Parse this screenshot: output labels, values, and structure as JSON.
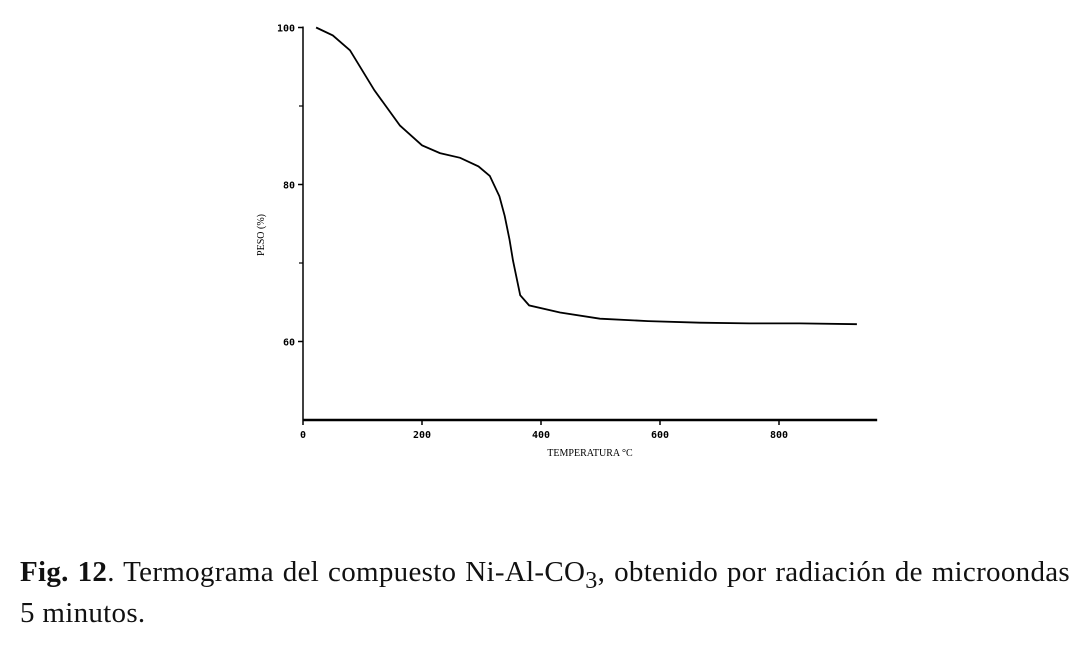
{
  "chart_data": {
    "type": "line",
    "xlabel": "TEMPERATURA °C",
    "ylabel": "PESO (%)",
    "xlim": [
      0,
      965
    ],
    "ylim": [
      50,
      100
    ],
    "xticks": [
      "0",
      "200",
      "400",
      "600",
      "800"
    ],
    "yticks": [
      "100",
      "80",
      "60"
    ],
    "grid": false,
    "series": [
      {
        "x": [
          22,
          50,
          79,
          120,
          163,
          200,
          230,
          264,
          295,
          314,
          330,
          339,
          347,
          353,
          365,
          380,
          432,
          499,
          580,
          667,
          750,
          835,
          931
        ],
        "y": [
          100,
          99,
          97.1,
          92,
          87.5,
          85,
          84,
          83.4,
          82.3,
          81.1,
          78.5,
          76,
          73,
          70.3,
          65.9,
          64.6,
          63.7,
          62.9,
          62.6,
          62.4,
          62.3,
          62.3,
          62.2
        ]
      }
    ]
  },
  "caption": {
    "label": "Fig. 12",
    "text_before": ". Termograma del compuesto Ni-Al-CO",
    "subscript": "3",
    "text_after": ", obtenido por radiación de microondas 5 minutos."
  }
}
